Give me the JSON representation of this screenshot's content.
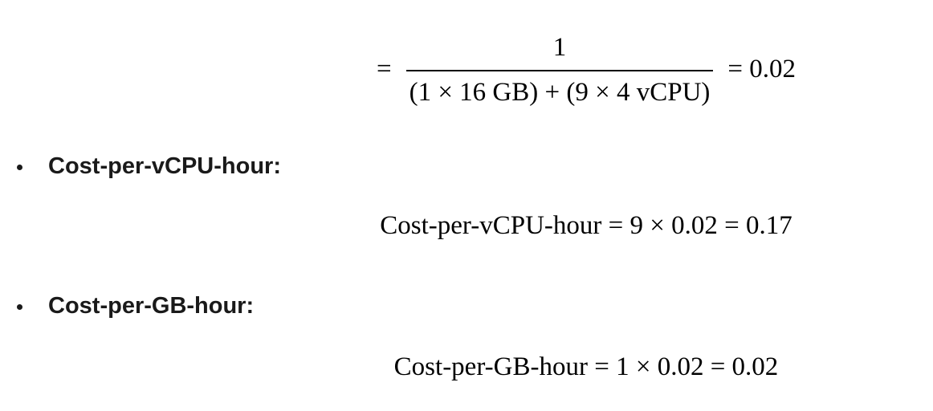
{
  "page": {
    "background_color": "#ffffff",
    "text_color": "#1a1a1a",
    "math_color": "#000000"
  },
  "content": {
    "equation_block_1": {
      "lhs": "=",
      "fraction": {
        "numerator": "1",
        "denominator": "(1 × 16 GB) + (9 × 4 vCPU)"
      },
      "rhs": "= 0.02"
    },
    "bullets": [
      {
        "label": "Cost-per-vCPU-hour:",
        "equation": "Cost-per-vCPU-hour = 9 × 0.02 = 0.17"
      },
      {
        "label": "Cost-per-GB-hour:",
        "equation": "Cost-per-GB-hour = 1 × 0.02 = 0.02"
      }
    ]
  }
}
